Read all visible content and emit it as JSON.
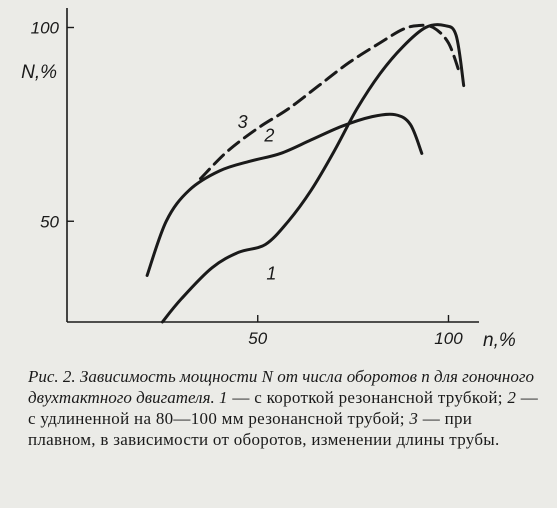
{
  "chart_data": {
    "type": "line",
    "xlabel": "n,%",
    "ylabel": "N,%",
    "xlim": [
      0,
      108
    ],
    "ylim": [
      24,
      104
    ],
    "x_ticks": [
      "50",
      "100"
    ],
    "y_ticks": [
      "50",
      "100"
    ],
    "grid": false,
    "series": [
      {
        "name": "1",
        "style": "solid",
        "x": [
          25,
          30,
          38,
          45,
          52,
          58,
          64,
          70,
          76,
          82,
          88,
          94,
          99,
          102,
          104
        ],
        "y": [
          24,
          30,
          38,
          42,
          44,
          50,
          58,
          68,
          79,
          88,
          95,
          100,
          100.5,
          98,
          85
        ]
      },
      {
        "name": "2",
        "style": "solid",
        "x": [
          21,
          26,
          32,
          40,
          48,
          56,
          64,
          72,
          80,
          86,
          90,
          93
        ],
        "y": [
          36,
          50,
          58,
          63,
          65.5,
          67.5,
          71,
          74.5,
          77,
          77.5,
          75,
          67.5
        ]
      },
      {
        "name": "3",
        "style": "dashed",
        "x": [
          35,
          42,
          50,
          58,
          66,
          74,
          82,
          88,
          92,
          96,
          100,
          103
        ],
        "y": [
          61,
          68,
          74,
          79,
          85,
          91,
          96,
          99.5,
          100.5,
          100,
          96,
          88
        ]
      }
    ]
  },
  "caption": {
    "title": "Рис. 2. Зависимость мощности N от числа оборотов n для гоночного двухтактного двигателя.",
    "items": [
      {
        "num": "1",
        "text": " — с короткой резонансной трубкой; "
      },
      {
        "num": "2",
        "text": " — с удлиненной на 80—100 мм резонансной трубой; "
      },
      {
        "num": "3",
        "text": " — при плавном, в зависимости от оборотов, изменении длины трубы."
      }
    ]
  }
}
